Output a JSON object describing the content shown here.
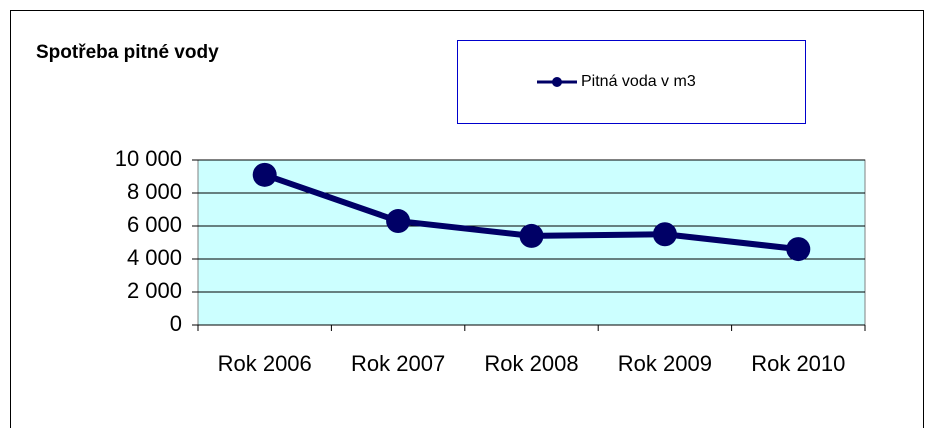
{
  "chart_data": {
    "type": "line",
    "title": "Spotřeba pitné vody",
    "categories": [
      "Rok 2006",
      "Rok 2007",
      "Rok 2008",
      "Rok 2009",
      "Rok 2010"
    ],
    "series": [
      {
        "name": "Pitná voda v m3",
        "color": "#000066",
        "values": [
          9100,
          6300,
          5400,
          5500,
          4600
        ]
      }
    ],
    "ylim": [
      0,
      10000
    ],
    "yticks": [
      0,
      {
        "value": 2000,
        "label": "2 000"
      },
      {
        "value": 4000,
        "label": "4 000"
      },
      {
        "value": 6000,
        "label": "6 000"
      },
      {
        "value": 8000,
        "label": "8 000"
      },
      {
        "value": 10000,
        "label": "10 000"
      }
    ],
    "grid": true,
    "plot_background": "#ccffff"
  }
}
